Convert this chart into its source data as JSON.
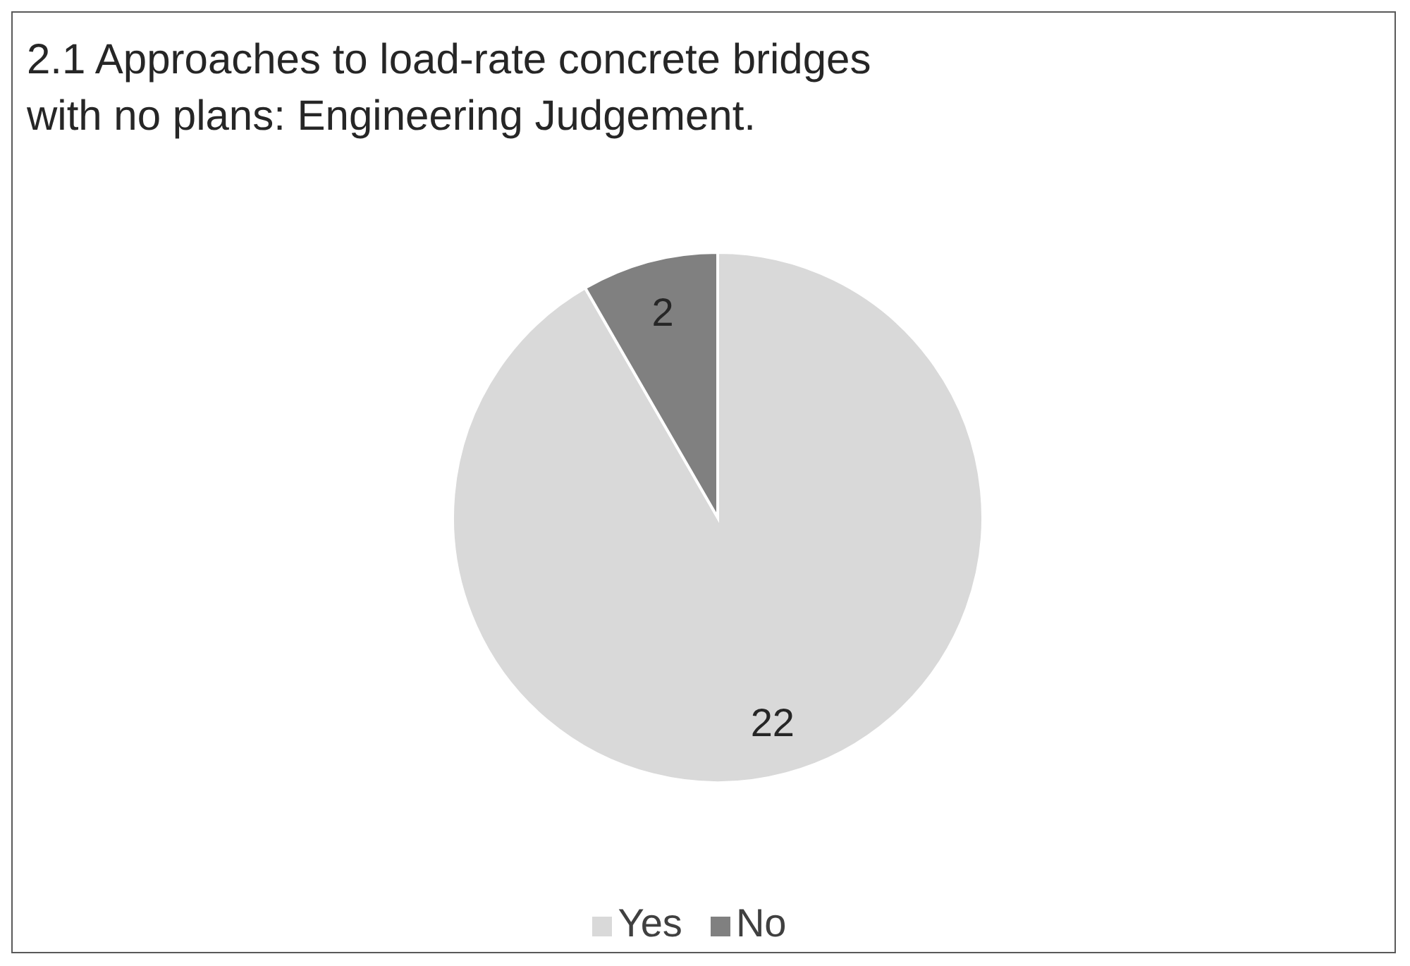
{
  "chart_data": {
    "type": "pie",
    "title": "2.1 Approaches to load-rate concrete bridges with no plans: Engineering  Judgement.",
    "categories": [
      "Yes",
      "No"
    ],
    "values": [
      22,
      2
    ],
    "colors": [
      "#d9d9d9",
      "#808080"
    ],
    "data_labels": true,
    "legend": "bottom"
  }
}
